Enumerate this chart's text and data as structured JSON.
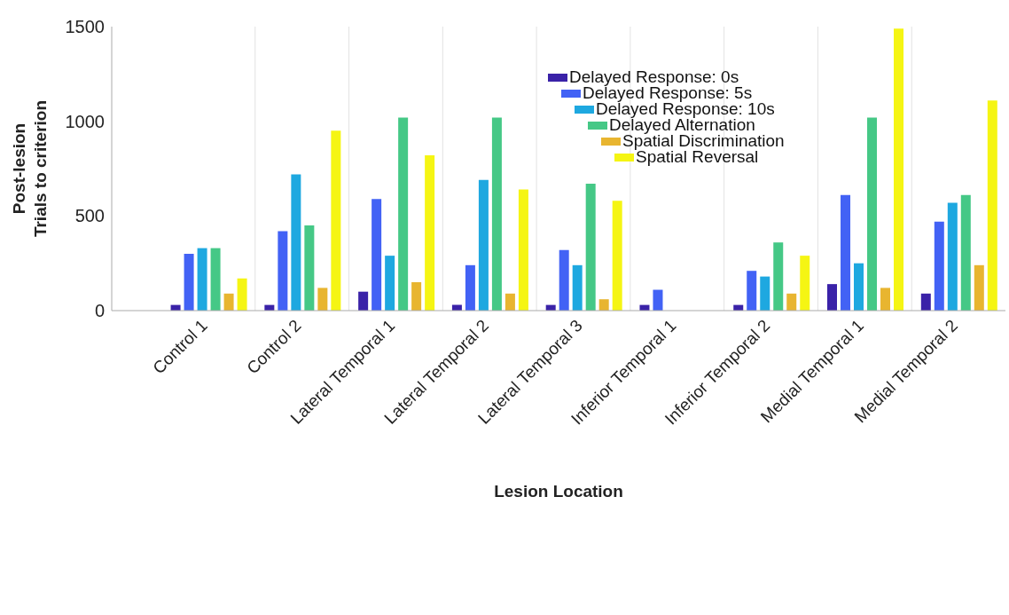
{
  "chart_data": {
    "type": "bar",
    "xlabel": "Lesion Location",
    "ylabel": "Post-lesion\nTrials to criterion",
    "categories": [
      "Control 1",
      "Control 2",
      "Lateral Temporal 1",
      "Lateral Temporal 2",
      "Lateral Temporal 3",
      "Inferior Temporal 1",
      "Inferior Temporal 2",
      "Medial Temporal 1",
      "Medial Temporal 2"
    ],
    "series": [
      {
        "name": "Delayed Response: 0s",
        "color": "#3a22a8",
        "values": [
          30,
          30,
          100,
          30,
          30,
          30,
          30,
          140,
          90
        ]
      },
      {
        "name": "Delayed Response: 5s",
        "color": "#4262f5",
        "values": [
          300,
          420,
          590,
          240,
          320,
          110,
          210,
          610,
          470
        ]
      },
      {
        "name": "Delayed Response: 10s",
        "color": "#1ea8e0",
        "values": [
          330,
          720,
          290,
          690,
          240,
          null,
          180,
          250,
          570
        ]
      },
      {
        "name": "Delayed Alternation",
        "color": "#45c886",
        "values": [
          330,
          450,
          1020,
          1020,
          670,
          null,
          360,
          1020,
          610
        ]
      },
      {
        "name": "Spatial Discrimination",
        "color": "#e8b530",
        "values": [
          90,
          120,
          150,
          90,
          60,
          null,
          90,
          120,
          240
        ]
      },
      {
        "name": "Spatial Reversal",
        "color": "#f5f513",
        "values": [
          170,
          950,
          820,
          640,
          580,
          null,
          290,
          1490,
          1110
        ]
      }
    ],
    "ylim": [
      0,
      1500
    ],
    "yticks": [
      0,
      500,
      1000,
      1500
    ],
    "grid": "x",
    "legend": "top right"
  }
}
